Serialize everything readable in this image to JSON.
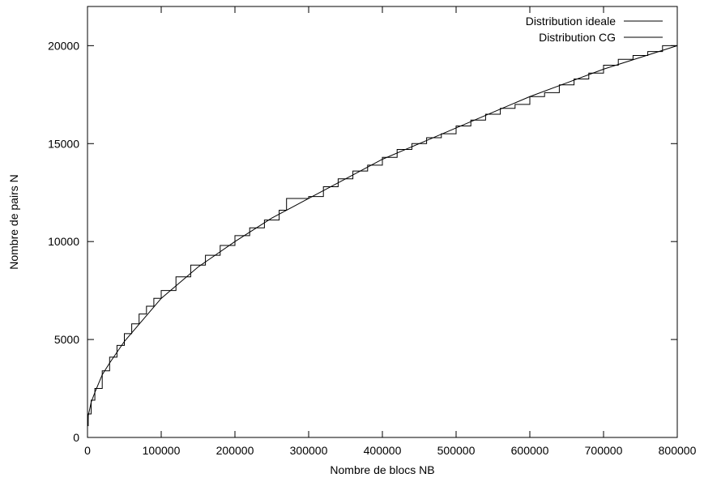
{
  "chart_data": {
    "type": "line",
    "title": "",
    "xlabel": "Nombre de blocs NB",
    "ylabel": "Nombre de pairs N",
    "xlim": [
      0,
      800000
    ],
    "ylim": [
      0,
      22000
    ],
    "x_ticks": [
      0,
      100000,
      200000,
      300000,
      400000,
      500000,
      600000,
      700000,
      800000
    ],
    "y_ticks": [
      0,
      5000,
      10000,
      15000,
      20000
    ],
    "x_tick_labels": [
      "0",
      "100000",
      "200000",
      "300000",
      "400000",
      "500000",
      "600000",
      "700000",
      "800000"
    ],
    "y_tick_labels": [
      "0",
      "5000",
      "10000",
      "15000",
      "20000"
    ],
    "grid": false,
    "legend_position": "top-right",
    "series": [
      {
        "name": "Distribution ideale",
        "style": "smooth",
        "x": [
          0,
          1000,
          5000,
          10000,
          20000,
          30000,
          50000,
          75000,
          100000,
          150000,
          200000,
          250000,
          300000,
          350000,
          400000,
          450000,
          500000,
          550000,
          600000,
          650000,
          700000,
          750000,
          800000
        ],
        "y": [
          600,
          1100,
          1800,
          2300,
          3200,
          3800,
          4900,
          6000,
          7100,
          8700,
          10000,
          11200,
          12200,
          13200,
          14200,
          15000,
          15800,
          16600,
          17400,
          18100,
          18800,
          19400,
          20000
        ]
      },
      {
        "name": "Distribution CG",
        "style": "step",
        "x": [
          0,
          1000,
          5000,
          10000,
          20000,
          30000,
          40000,
          50000,
          60000,
          70000,
          80000,
          90000,
          100000,
          120000,
          140000,
          160000,
          180000,
          200000,
          220000,
          240000,
          260000,
          270000,
          300000,
          320000,
          340000,
          360000,
          380000,
          400000,
          420000,
          440000,
          460000,
          480000,
          500000,
          520000,
          540000,
          560000,
          580000,
          600000,
          620000,
          640000,
          660000,
          680000,
          700000,
          720000,
          740000,
          760000,
          780000,
          800000
        ],
        "y": [
          600,
          1200,
          1900,
          2500,
          3400,
          4100,
          4700,
          5300,
          5800,
          6300,
          6700,
          7100,
          7500,
          8200,
          8800,
          9300,
          9800,
          10300,
          10700,
          11100,
          11600,
          12200,
          12300,
          12800,
          13200,
          13600,
          13900,
          14300,
          14700,
          15000,
          15300,
          15500,
          15900,
          16200,
          16500,
          16800,
          17000,
          17400,
          17600,
          18000,
          18300,
          18600,
          19000,
          19300,
          19500,
          19700,
          20000,
          20000
        ]
      }
    ]
  }
}
